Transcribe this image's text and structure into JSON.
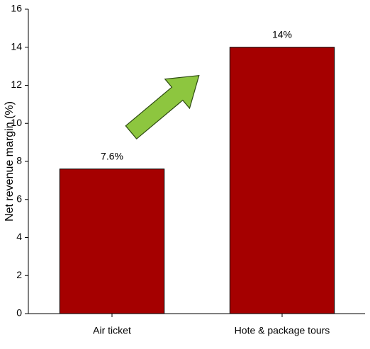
{
  "chart_data": {
    "type": "bar",
    "categories": [
      "Air ticket",
      "Hote & package tours"
    ],
    "values": [
      7.6,
      14
    ],
    "value_labels": [
      "7.6%",
      "14%"
    ],
    "color": "#a50000",
    "ylabel": "Net revenue margin (%)",
    "ylim": [
      0,
      16
    ],
    "yticks": [
      0,
      2,
      4,
      6,
      8,
      10,
      12,
      14,
      16
    ],
    "grid": false
  }
}
